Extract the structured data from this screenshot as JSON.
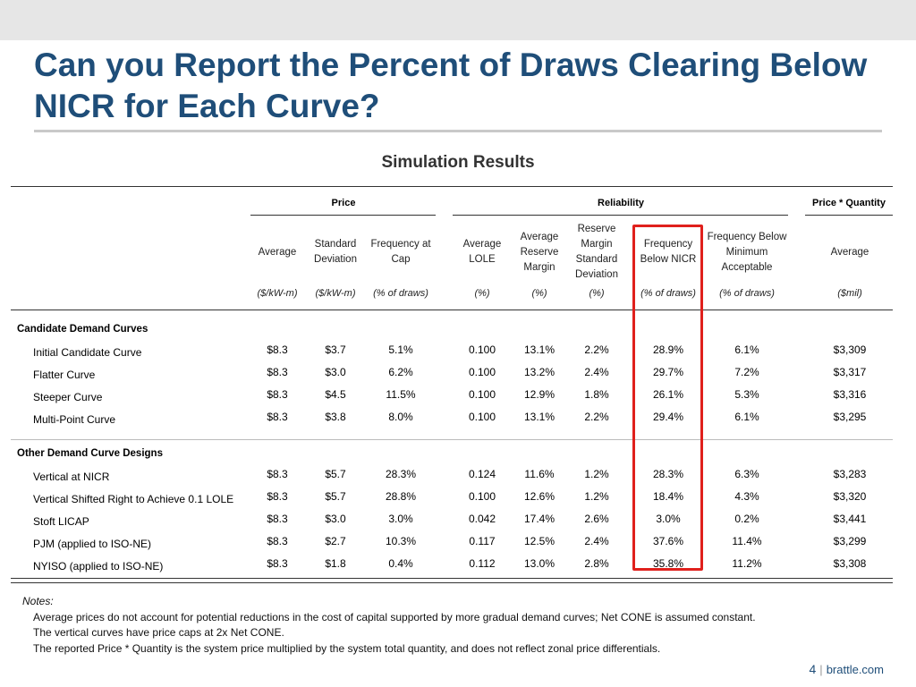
{
  "slide": {
    "title": "Can you Report the Percent of Draws Clearing Below NICR for Each Curve?",
    "subtitle": "Simulation Results"
  },
  "table": {
    "groups": {
      "price": "Price",
      "reliability": "Reliability",
      "pq": "Price * Quantity"
    },
    "columns": [
      {
        "label": "Average",
        "unit": "($/kW-m)"
      },
      {
        "label": "Standard Deviation",
        "unit": "($/kW-m)"
      },
      {
        "label": "Frequency at Cap",
        "unit": "(% of draws)"
      },
      {
        "label": "Average LOLE",
        "unit": "(%)"
      },
      {
        "label": "Average Reserve Margin",
        "unit": "(%)"
      },
      {
        "label": "Reserve Margin Standard Deviation",
        "unit": "(%)"
      },
      {
        "label": "Frequency Below NICR",
        "unit": "(% of draws)"
      },
      {
        "label": "Frequency Below Minimum Acceptable",
        "unit": "(% of draws)"
      },
      {
        "label": "Average",
        "unit": "($mil)"
      }
    ],
    "sections": [
      {
        "title": "Candidate Demand Curves",
        "rows": [
          {
            "label": "Initial Candidate Curve",
            "values": [
              "$8.3",
              "$3.7",
              "5.1%",
              "0.100",
              "13.1%",
              "2.2%",
              "28.9%",
              "6.1%",
              "$3,309"
            ]
          },
          {
            "label": "Flatter Curve",
            "values": [
              "$8.3",
              "$3.0",
              "6.2%",
              "0.100",
              "13.2%",
              "2.4%",
              "29.7%",
              "7.2%",
              "$3,317"
            ]
          },
          {
            "label": "Steeper Curve",
            "values": [
              "$8.3",
              "$4.5",
              "11.5%",
              "0.100",
              "12.9%",
              "1.8%",
              "26.1%",
              "5.3%",
              "$3,316"
            ]
          },
          {
            "label": "Multi-Point Curve",
            "values": [
              "$8.3",
              "$3.8",
              "8.0%",
              "0.100",
              "13.1%",
              "2.2%",
              "29.4%",
              "6.1%",
              "$3,295"
            ]
          }
        ]
      },
      {
        "title": "Other Demand Curve Designs",
        "rows": [
          {
            "label": "Vertical at NICR",
            "values": [
              "$8.3",
              "$5.7",
              "28.3%",
              "0.124",
              "11.6%",
              "1.2%",
              "28.3%",
              "6.3%",
              "$3,283"
            ]
          },
          {
            "label": "Vertical Shifted Right to Achieve 0.1 LOLE",
            "values": [
              "$8.3",
              "$5.7",
              "28.8%",
              "0.100",
              "12.6%",
              "1.2%",
              "18.4%",
              "4.3%",
              "$3,320"
            ]
          },
          {
            "label": "Stoft LICAP",
            "values": [
              "$8.3",
              "$3.0",
              "3.0%",
              "0.042",
              "17.4%",
              "2.6%",
              "3.0%",
              "0.2%",
              "$3,441"
            ]
          },
          {
            "label": "PJM (applied to ISO-NE)",
            "values": [
              "$8.3",
              "$2.7",
              "10.3%",
              "0.117",
              "12.5%",
              "2.4%",
              "37.6%",
              "11.4%",
              "$3,299"
            ]
          },
          {
            "label": "NYISO (applied to ISO-NE)",
            "values": [
              "$8.3",
              "$1.8",
              "0.4%",
              "0.112",
              "13.0%",
              "2.8%",
              "35.8%",
              "11.2%",
              "$3,308"
            ]
          }
        ]
      }
    ]
  },
  "notes": {
    "heading": "Notes:",
    "lines": [
      "Average prices do not account for potential reductions in the cost of capital supported by more gradual demand curves; Net CONE is assumed constant.",
      "The vertical curves have price caps at 2x Net CONE.",
      "The reported Price * Quantity is the system price multiplied by the system total quantity, and does not reflect zonal price differentials."
    ]
  },
  "footer": {
    "page": "4",
    "site": "brattle.com"
  },
  "colors": {
    "title": "#1f4e79",
    "highlight": "#e0201c"
  }
}
